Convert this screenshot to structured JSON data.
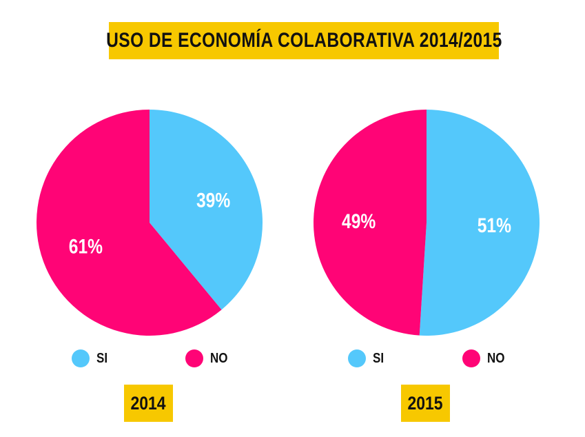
{
  "title": "USO DE ECONOMÍA COLABORATIVA 2014/2015",
  "colors": {
    "si": "#54c8fb",
    "no": "#ff0476",
    "accent": "#f7c800"
  },
  "legend": {
    "si": "SI",
    "no": "NO"
  },
  "chart_data": [
    {
      "type": "pie",
      "year": "2014",
      "slices": [
        {
          "label": "SI",
          "value": 39,
          "display": "39%"
        },
        {
          "label": "NO",
          "value": 61,
          "display": "61%"
        }
      ]
    },
    {
      "type": "pie",
      "year": "2015",
      "slices": [
        {
          "label": "SI",
          "value": 51,
          "display": "51%"
        },
        {
          "label": "NO",
          "value": 49,
          "display": "49%"
        }
      ]
    }
  ]
}
